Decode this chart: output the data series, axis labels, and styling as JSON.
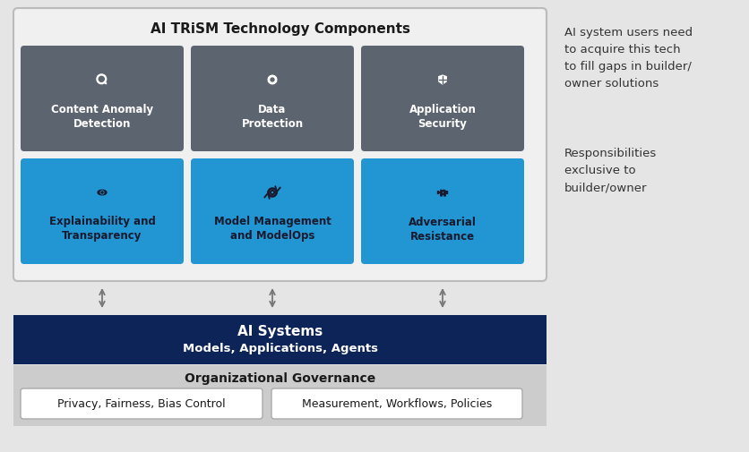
{
  "bg_color": "#e5e5e5",
  "outer_box_color": "#f0f0f0",
  "outer_box_border": "#bbbbbb",
  "title_trism": "AI TRiSM Technology Components",
  "gray_box_color": "#5c6470",
  "blue_box_color": "#2196d3",
  "dark_navy_color": "#0d2458",
  "gov_bg_color": "#cccccc",
  "white_box_color": "#ffffff",
  "white_box_border": "#aaaaaa",
  "top_row_labels": [
    "Content Anomaly\nDetection",
    "Data\nProtection",
    "Application\nSecurity"
  ],
  "bottom_row_labels": [
    "Explainability and\nTransparency",
    "Model Management\nand ModelOps",
    "Adversarial\nResistance"
  ],
  "ai_systems_text1": "AI Systems",
  "ai_systems_text2": "Models, Applications, Agents",
  "org_gov_text": "Organizational Governance",
  "gov_box1": "Privacy, Fairness, Bias Control",
  "gov_box2": "Measurement, Workflows, Policies",
  "right_text1": "AI system users need\nto acquire this tech\nto fill gaps in builder/\nowner solutions",
  "right_text2": "Responsibilities\nexclusive to\nbuilder/owner",
  "arrow_color": "#777777",
  "label_top_color": "#ffffff",
  "label_bot_color": "#1a1a2e",
  "icon_top_color": "#ffffff",
  "icon_bot_color": "#1a1a2e"
}
